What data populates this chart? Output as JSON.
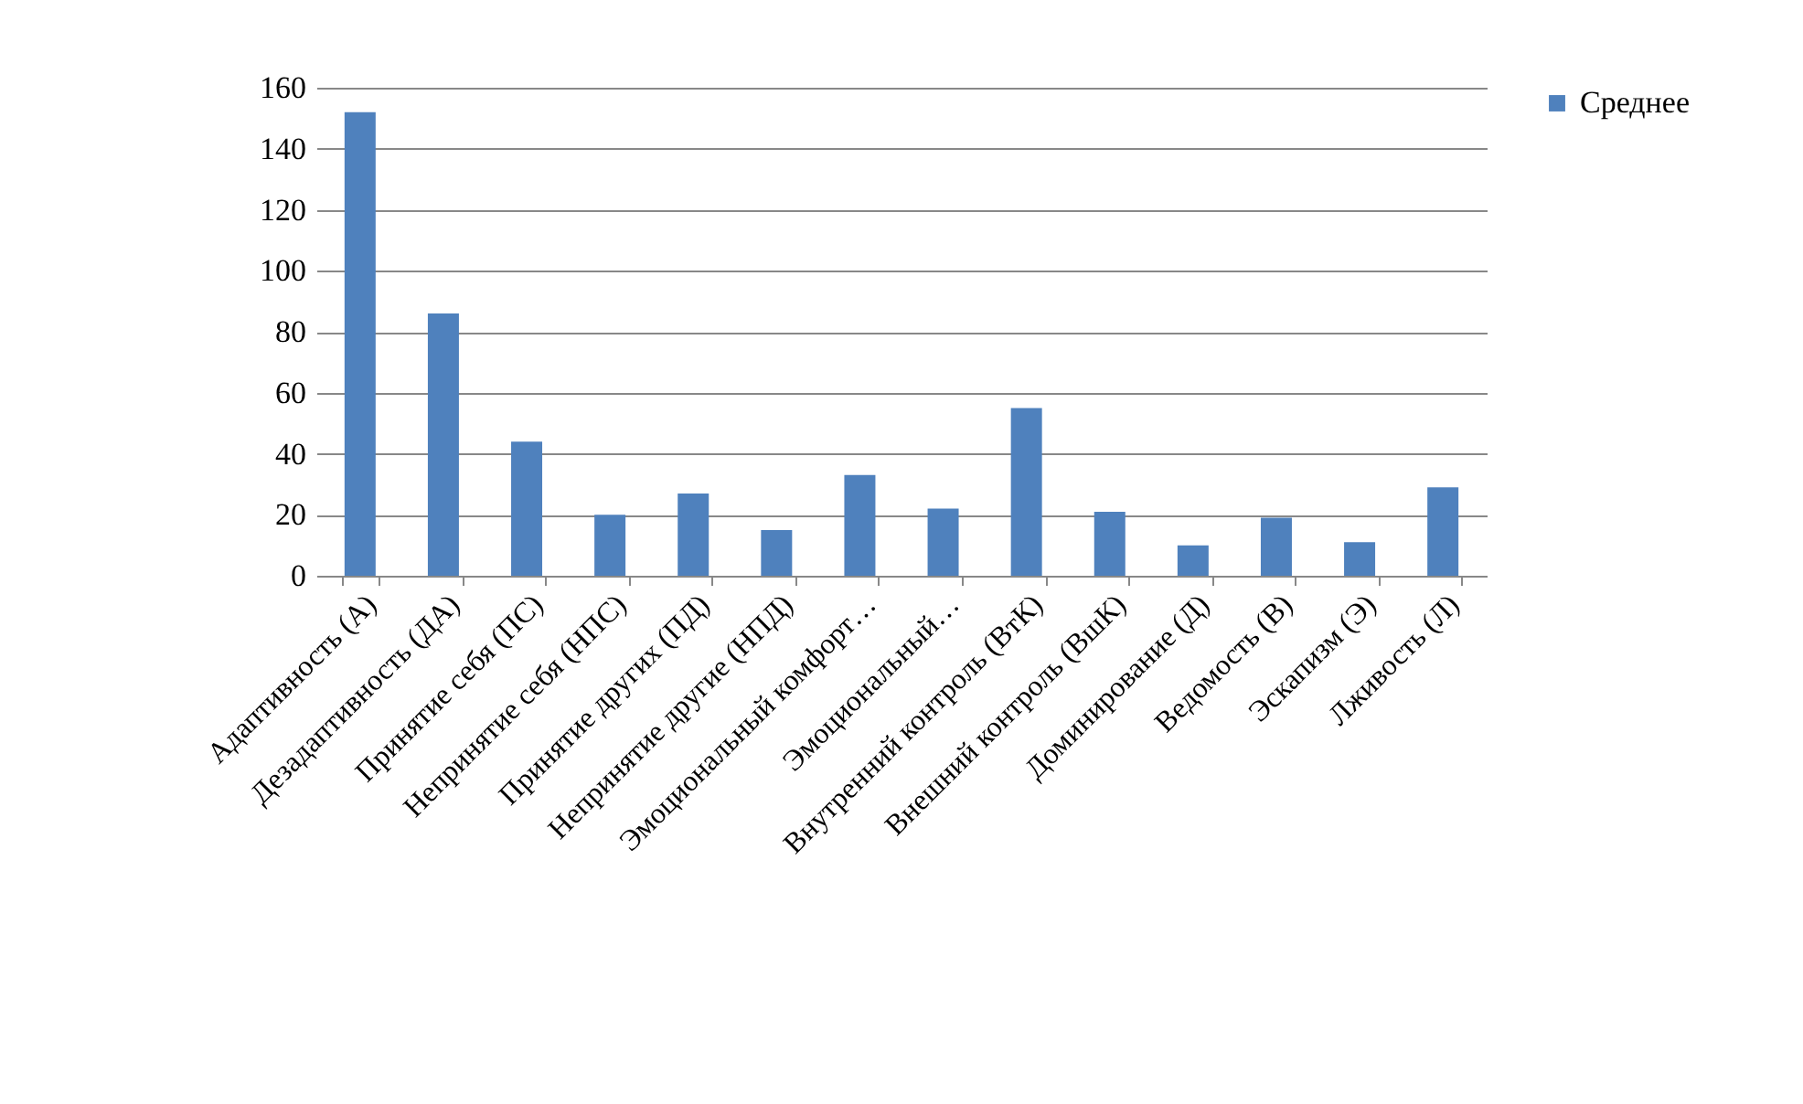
{
  "chart_data": {
    "type": "bar",
    "categories": [
      "Адаптивность (А)",
      "Дезадаптивность (ДА)",
      "Принятие себя (ПС)",
      "Непринятие себя (НПС)",
      "Принятие других (ПД)",
      "Непринятие другие (НПД)",
      "Эмоциональный комфорт…",
      "Эмоциональный…",
      "Внутренний контроль (ВтК)",
      "Внешний контроль (ВшК)",
      "Доминирование (Д)",
      "Ведомость (В)",
      "Эскапизм (Э)",
      "Лживость (Л)"
    ],
    "series": [
      {
        "name": "Среднее",
        "color": "#4f81bd",
        "values": [
          152,
          86,
          44,
          20,
          27,
          15,
          33,
          22,
          55,
          21,
          10,
          19,
          11,
          29
        ]
      }
    ],
    "ylim": [
      0,
      160
    ],
    "yticks": [
      0,
      20,
      40,
      60,
      80,
      100,
      120,
      140,
      160
    ],
    "grid": "y",
    "legend": "right"
  }
}
